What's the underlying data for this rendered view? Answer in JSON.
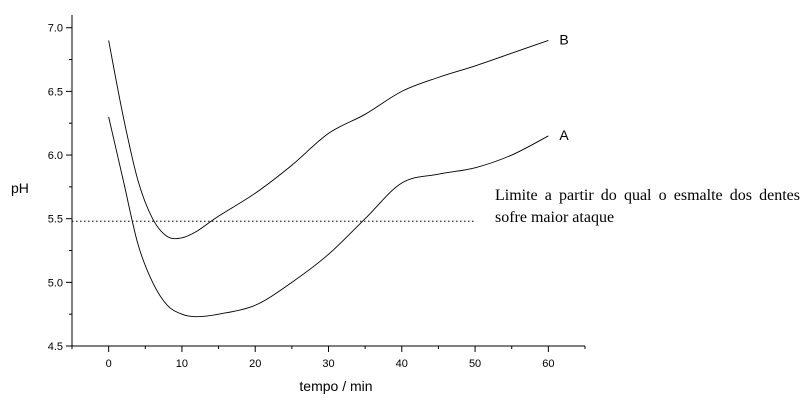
{
  "chart_data": {
    "type": "line",
    "xlabel": "tempo / min",
    "ylabel": "pH",
    "xlim": [
      -5,
      65
    ],
    "ylim": [
      4.5,
      7.1
    ],
    "xticks": [
      0,
      10,
      20,
      30,
      40,
      50,
      60
    ],
    "yticks": [
      "4.5",
      "5.0",
      "5.5",
      "6.0",
      "6.5",
      "7.0"
    ],
    "grid": false,
    "series": [
      {
        "name": "B",
        "x": [
          0,
          2,
          4,
          6,
          8,
          10,
          12,
          15,
          20,
          25,
          30,
          35,
          40,
          45,
          50,
          55,
          60
        ],
        "y": [
          6.9,
          6.3,
          5.8,
          5.5,
          5.36,
          5.35,
          5.4,
          5.52,
          5.7,
          5.92,
          6.17,
          6.32,
          6.5,
          6.61,
          6.7,
          6.8,
          6.9
        ]
      },
      {
        "name": "A",
        "x": [
          0,
          2,
          4,
          6,
          8,
          10,
          12,
          15,
          20,
          25,
          30,
          35,
          40,
          45,
          50,
          55,
          60
        ],
        "y": [
          6.3,
          5.8,
          5.3,
          5.0,
          4.82,
          4.75,
          4.73,
          4.75,
          4.82,
          5.0,
          5.22,
          5.5,
          5.78,
          5.85,
          5.9,
          6.0,
          6.15
        ]
      }
    ],
    "reference_line": {
      "y": 5.48,
      "x_end": 50
    },
    "annotation": "Limite a partir do qual o esmalte dos dentes sofre maior ataque"
  }
}
